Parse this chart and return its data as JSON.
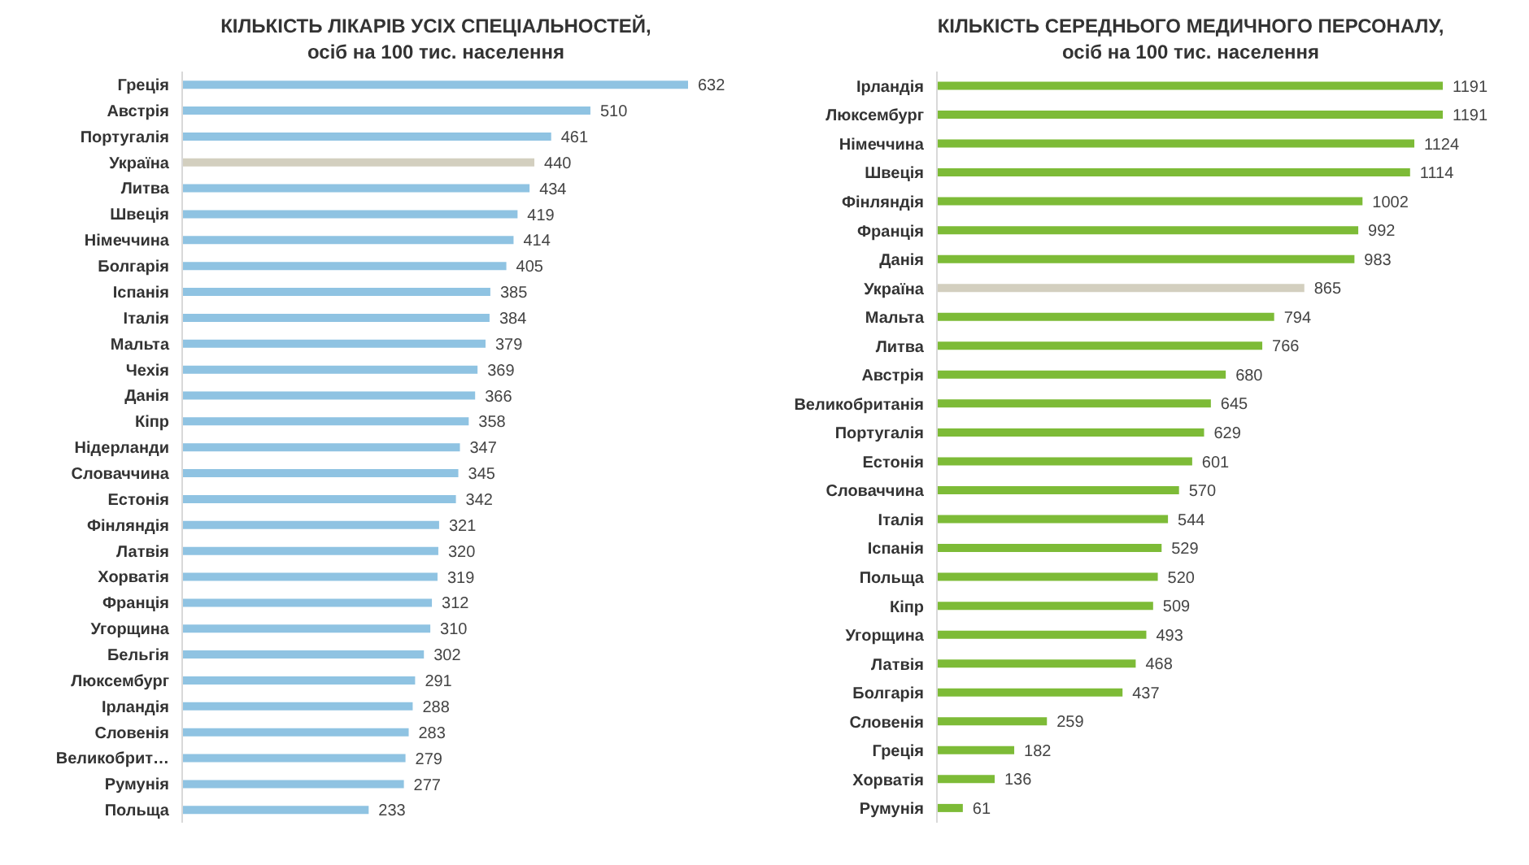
{
  "chart_data": [
    {
      "type": "bar",
      "orientation": "horizontal",
      "title": "КІЛЬКІСТЬ ЛІКАРІВ УСІХ СПЕЦІАЛЬНОСТЕЙ,",
      "subtitle": "осіб на 100 тис. населення",
      "data_labels": true,
      "categories": [
        "Греція",
        "Австрія",
        "Португалія",
        "Україна",
        "Литва",
        "Швеція",
        "Німеччина",
        "Болгарія",
        "Іспанія",
        "Італія",
        "Мальта",
        "Чехія",
        "Данія",
        "Кіпр",
        "Нідерланди",
        "Словаччина",
        "Естонія",
        "Фінляндія",
        "Латвія",
        "Хорватія",
        "Франція",
        "Угорщина",
        "Бельгія",
        "Люксембург",
        "Ірландія",
        "Словенія",
        "Великобрит…",
        "Румунія",
        "Польща"
      ],
      "values": [
        632,
        510,
        461,
        440,
        434,
        419,
        414,
        405,
        385,
        384,
        379,
        369,
        366,
        358,
        347,
        345,
        342,
        321,
        320,
        319,
        312,
        310,
        302,
        291,
        288,
        283,
        279,
        277,
        233
      ],
      "colors": [
        "#8fc3e2",
        "#8fc3e2",
        "#8fc3e2",
        "#d3cfbf",
        "#8fc3e2",
        "#8fc3e2",
        "#8fc3e2",
        "#8fc3e2",
        "#8fc3e2",
        "#8fc3e2",
        "#8fc3e2",
        "#8fc3e2",
        "#8fc3e2",
        "#8fc3e2",
        "#8fc3e2",
        "#8fc3e2",
        "#8fc3e2",
        "#8fc3e2",
        "#8fc3e2",
        "#8fc3e2",
        "#8fc3e2",
        "#8fc3e2",
        "#8fc3e2",
        "#8fc3e2",
        "#8fc3e2",
        "#8fc3e2",
        "#8fc3e2",
        "#8fc3e2",
        "#8fc3e2"
      ]
    },
    {
      "type": "bar",
      "orientation": "horizontal",
      "title": "КІЛЬКІСТЬ СЕРЕДНЬОГО МЕДИЧНОГО ПЕРСОНАЛУ,",
      "subtitle": "осіб на 100 тис. населення",
      "data_labels": true,
      "categories": [
        "Ірландія",
        "Люксембург",
        "Німеччина",
        "Швеція",
        "Фінляндія",
        "Франція",
        "Данія",
        "Україна",
        "Мальта",
        "Литва",
        "Австрія",
        "Великобританія",
        "Португалія",
        "Естонія",
        "Словаччина",
        "Італія",
        "Іспанія",
        "Польща",
        "Кіпр",
        "Угорщина",
        "Латвія",
        "Болгарія",
        "Словенія",
        "Греція",
        "Хорватія",
        "Румунія"
      ],
      "values": [
        1191,
        1191,
        1124,
        1114,
        1002,
        992,
        983,
        865,
        794,
        766,
        680,
        645,
        629,
        601,
        570,
        544,
        529,
        520,
        509,
        493,
        468,
        437,
        259,
        182,
        136,
        61
      ],
      "colors": [
        "#7dbb37",
        "#7dbb37",
        "#7dbb37",
        "#7dbb37",
        "#7dbb37",
        "#7dbb37",
        "#7dbb37",
        "#d3cfbf",
        "#7dbb37",
        "#7dbb37",
        "#7dbb37",
        "#7dbb37",
        "#7dbb37",
        "#7dbb37",
        "#7dbb37",
        "#7dbb37",
        "#7dbb37",
        "#7dbb37",
        "#7dbb37",
        "#7dbb37",
        "#7dbb37",
        "#7dbb37",
        "#7dbb37",
        "#7dbb37",
        "#7dbb37",
        "#7dbb37"
      ]
    }
  ]
}
